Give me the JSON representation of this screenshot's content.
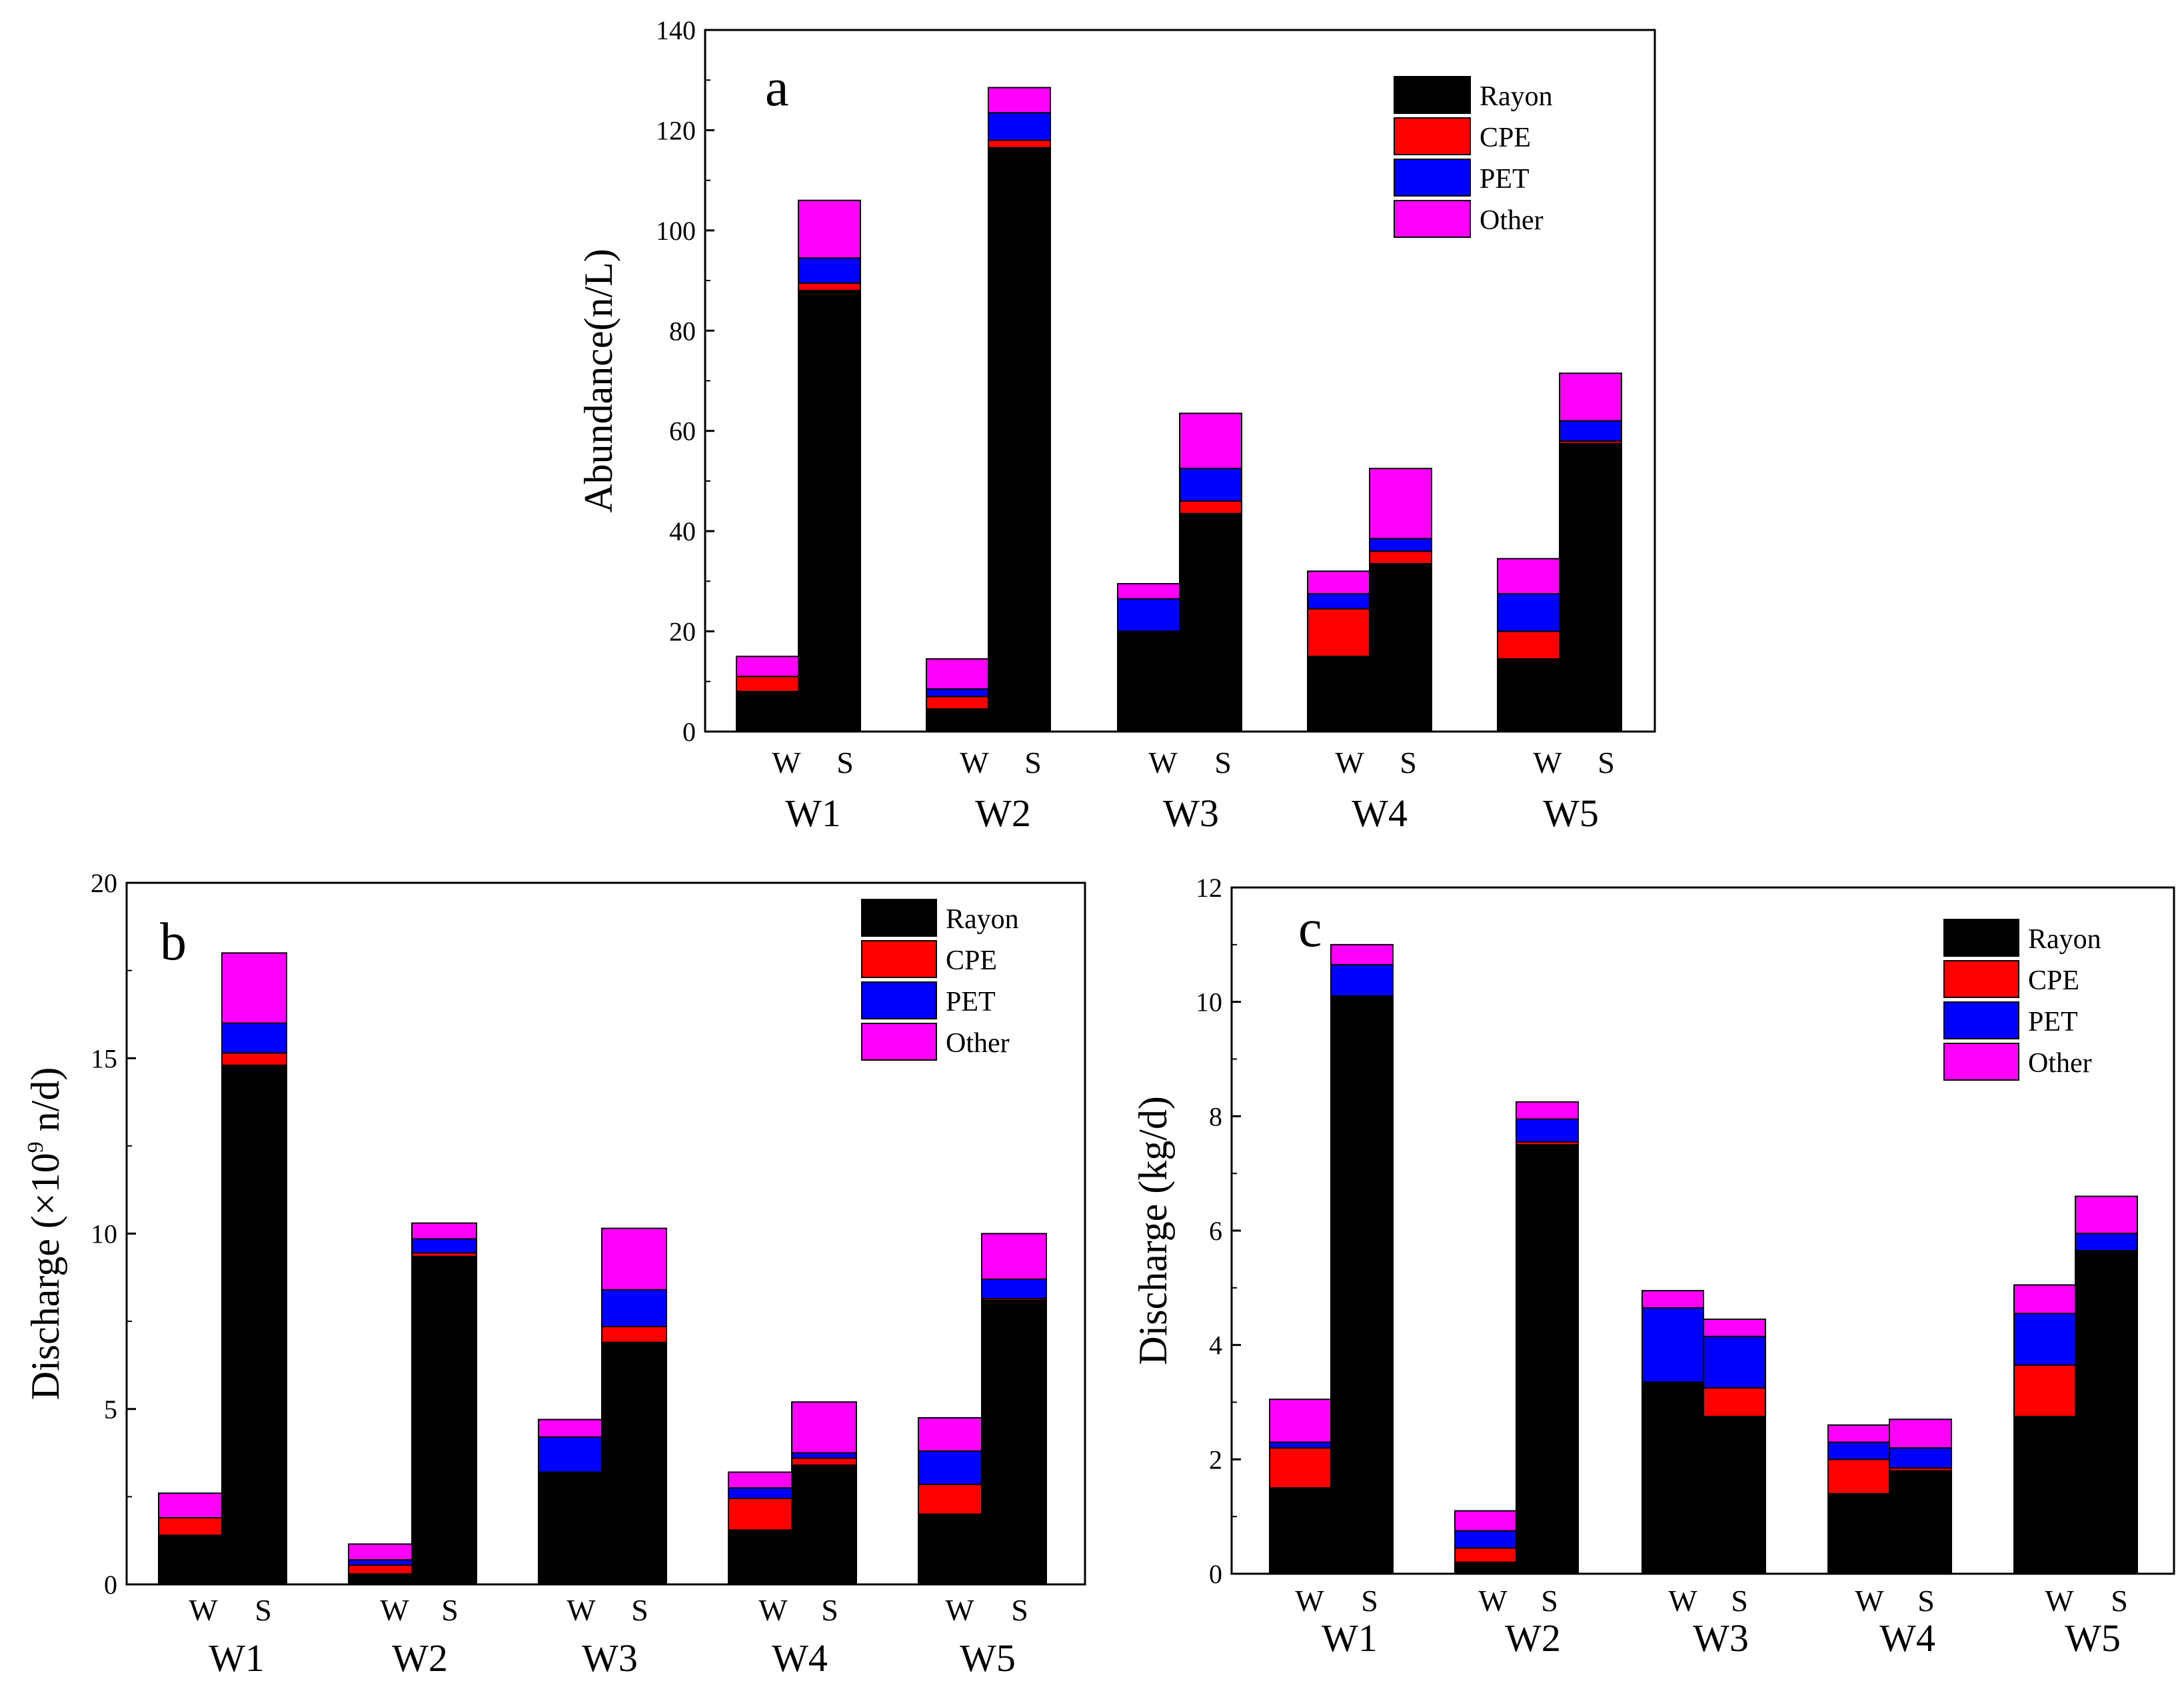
{
  "figure": {
    "colors": {
      "Rayon": "#000000",
      "CPE": "#ff0000",
      "PET": "#0000ff",
      "Other": "#ff00ff"
    },
    "bar_sublabels": [
      "W",
      "S"
    ]
  },
  "chart_data": [
    {
      "type": "bar",
      "stacked": true,
      "panel": "a",
      "title": "",
      "xlabel": "",
      "ylabel": "Abundance(n/L)",
      "ylim": [
        0,
        140
      ],
      "yticks": [
        0,
        20,
        40,
        60,
        80,
        100,
        120,
        140
      ],
      "categories": [
        "W1",
        "W2",
        "W3",
        "W4",
        "W5"
      ],
      "subcategories": [
        "W",
        "S"
      ],
      "series": [
        {
          "name": "Rayon",
          "values": [
            [
              8,
              88
            ],
            [
              4.5,
              116.5
            ],
            [
              20,
              43.5
            ],
            [
              15,
              33.5
            ],
            [
              14.5,
              57.5
            ]
          ]
        },
        {
          "name": "CPE",
          "values": [
            [
              3,
              1.5
            ],
            [
              2.5,
              1.5
            ],
            [
              0,
              2.5
            ],
            [
              9.5,
              2.5
            ],
            [
              5.5,
              0.5
            ]
          ]
        },
        {
          "name": "PET",
          "values": [
            [
              0,
              5
            ],
            [
              1.5,
              5.5
            ],
            [
              6.5,
              6.5
            ],
            [
              3,
              2.5
            ],
            [
              7.5,
              4
            ]
          ]
        },
        {
          "name": "Other",
          "values": [
            [
              4,
              11.5
            ],
            [
              6,
              5
            ],
            [
              3,
              11
            ],
            [
              4.5,
              14
            ],
            [
              7,
              9.5
            ]
          ]
        }
      ],
      "legend": [
        "Rayon",
        "CPE",
        "PET",
        "Other"
      ],
      "legend_position": "top-right"
    },
    {
      "type": "bar",
      "stacked": true,
      "panel": "b",
      "title": "",
      "xlabel": "",
      "ylabel": "Discharge (×10",
      "ylabel_sup": "9",
      "ylabel_tail": " n/d)",
      "ylim": [
        0,
        20
      ],
      "yticks": [
        0,
        5,
        10,
        15,
        20
      ],
      "categories": [
        "W1",
        "W2",
        "W3",
        "W4",
        "W5"
      ],
      "subcategories": [
        "W",
        "S"
      ],
      "series": [
        {
          "name": "Rayon",
          "values": [
            [
              1.4,
              14.8
            ],
            [
              0.3,
              9.35
            ],
            [
              3.2,
              6.9
            ],
            [
              1.55,
              3.4
            ],
            [
              2.0,
              8.1
            ]
          ]
        },
        {
          "name": "CPE",
          "values": [
            [
              0.5,
              0.35
            ],
            [
              0.25,
              0.1
            ],
            [
              0,
              0.45
            ],
            [
              0.9,
              0.2
            ],
            [
              0.85,
              0.05
            ]
          ]
        },
        {
          "name": "PET",
          "values": [
            [
              0,
              0.85
            ],
            [
              0.15,
              0.4
            ],
            [
              1.0,
              1.05
            ],
            [
              0.3,
              0.15
            ],
            [
              0.95,
              0.55
            ]
          ]
        },
        {
          "name": "Other",
          "values": [
            [
              0.7,
              2.0
            ],
            [
              0.45,
              0.45
            ],
            [
              0.5,
              1.75
            ],
            [
              0.45,
              1.45
            ],
            [
              0.95,
              1.3
            ]
          ]
        }
      ],
      "legend": [
        "Rayon",
        "CPE",
        "PET",
        "Other"
      ],
      "legend_position": "top-right"
    },
    {
      "type": "bar",
      "stacked": true,
      "panel": "c",
      "title": "",
      "xlabel": "",
      "ylabel": "Discharge (kg/d)",
      "ylim": [
        0,
        12
      ],
      "yticks": [
        0,
        2,
        4,
        6,
        8,
        10,
        12
      ],
      "categories": [
        "W1",
        "W2",
        "W3",
        "W4",
        "W5"
      ],
      "subcategories": [
        "W",
        "S"
      ],
      "series": [
        {
          "name": "Rayon",
          "values": [
            [
              1.5,
              10.1
            ],
            [
              0.2,
              7.5
            ],
            [
              3.35,
              2.75
            ],
            [
              1.4,
              1.8
            ],
            [
              2.75,
              5.65
            ]
          ]
        },
        {
          "name": "CPE",
          "values": [
            [
              0.7,
              0
            ],
            [
              0.25,
              0.05
            ],
            [
              0,
              0.5
            ],
            [
              0.6,
              0.05
            ],
            [
              0.9,
              0
            ]
          ]
        },
        {
          "name": "PET",
          "values": [
            [
              0.1,
              0.55
            ],
            [
              0.3,
              0.4
            ],
            [
              1.3,
              0.9
            ],
            [
              0.3,
              0.35
            ],
            [
              0.9,
              0.3
            ]
          ]
        },
        {
          "name": "Other",
          "values": [
            [
              0.75,
              0.35
            ],
            [
              0.35,
              0.3
            ],
            [
              0.3,
              0.3
            ],
            [
              0.3,
              0.5
            ],
            [
              0.5,
              0.65
            ]
          ]
        }
      ],
      "legend": [
        "Rayon",
        "CPE",
        "PET",
        "Other"
      ],
      "legend_position": "top-right"
    }
  ]
}
